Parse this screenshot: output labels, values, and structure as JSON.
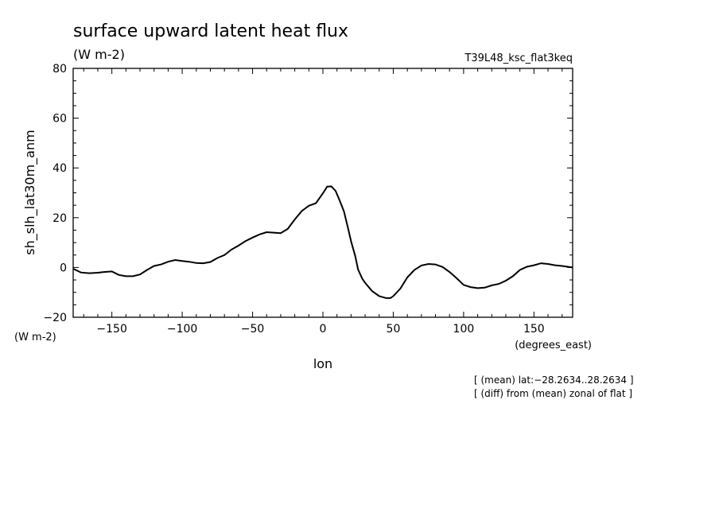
{
  "chart_data": {
    "type": "line",
    "title": "surface upward latent heat flux",
    "title_units": "(W m-2)",
    "experiment": "T39L48_ksc_flat3keq",
    "ylabel": "sh_slh_lat30m_anm",
    "yunits": "(W m-2)",
    "xlabel": "lon",
    "xunits": "(degrees_east)",
    "xlim": [
      -177.5,
      177.5
    ],
    "ylim": [
      -20,
      80
    ],
    "xticks": [
      -150,
      -100,
      -50,
      0,
      50,
      100,
      150
    ],
    "yticks": [
      -20,
      0,
      20,
      40,
      60,
      80
    ],
    "xtick_labels": [
      "−150",
      "−100",
      "−50",
      "0",
      "50",
      "100",
      "150"
    ],
    "ytick_labels": [
      "−20",
      "0",
      "20",
      "40",
      "60",
      "80"
    ],
    "grid": false,
    "notes": [
      "[ (mean) lat:−28.2634..28.2634 ]",
      "[ (diff) from (mean) zonal of flat ]"
    ],
    "series": [
      {
        "x": [
          -177.5,
          -172,
          -166,
          -160,
          -155,
          -150,
          -145,
          -140,
          -135,
          -130,
          -125,
          -120,
          -115,
          -110,
          -105,
          -100,
          -95,
          -90,
          -85,
          -80,
          -75,
          -70,
          -65,
          -60,
          -55,
          -50,
          -45,
          -40,
          -35,
          -30,
          -25,
          -20,
          -15,
          -10,
          -5,
          0,
          3,
          6,
          9,
          12,
          15,
          18,
          20,
          23,
          25,
          28,
          30,
          35,
          40,
          45,
          48,
          50,
          55,
          60,
          65,
          70,
          75,
          80,
          85,
          90,
          95,
          100,
          105,
          110,
          115,
          120,
          125,
          130,
          135,
          140,
          145,
          150,
          155,
          160,
          165,
          170,
          177.5
        ],
        "y": [
          -0.5,
          -2,
          -2.3,
          -2.1,
          -1.8,
          -1.6,
          -3,
          -3.5,
          -3.5,
          -2.8,
          -1,
          0.6,
          1.2,
          2.3,
          3,
          2.6,
          2.3,
          1.8,
          1.7,
          2.2,
          3.8,
          5,
          7.2,
          8.8,
          10.6,
          12,
          13.3,
          14.2,
          14,
          13.8,
          15.5,
          19.3,
          22.7,
          24.8,
          25.8,
          29.8,
          32.5,
          32.6,
          30.8,
          26.8,
          22.5,
          15.5,
          10.5,
          4.5,
          -0.8,
          -4.5,
          -6.2,
          -9.5,
          -11.5,
          -12.3,
          -12.3,
          -11.5,
          -8.5,
          -4,
          -1,
          0.8,
          1.4,
          1.2,
          0.2,
          -1.8,
          -4.3,
          -7,
          -7.9,
          -8.3,
          -8.1,
          -7.2,
          -6.6,
          -5.3,
          -3.5,
          -1,
          0.3,
          0.9,
          1.7,
          1.4,
          0.9,
          0.6,
          0
        ]
      }
    ]
  }
}
